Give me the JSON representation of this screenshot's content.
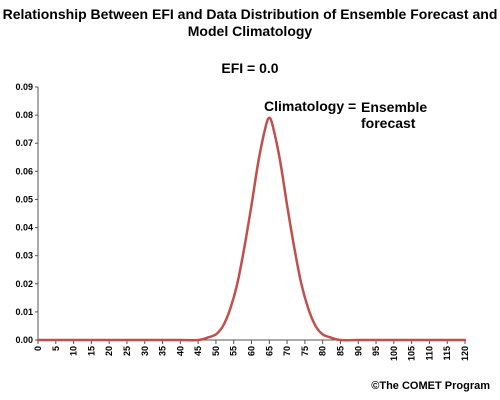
{
  "title": "Relationship Between EFI and Data Distribution of Ensemble Forecast and Model Climatology",
  "subtitle": "EFI = 0.0",
  "annotation_climatology": "Climatology =",
  "annotation_ensemble_line1": "Ensemble",
  "annotation_ensemble_line2": "forecast",
  "copyright": "©The COMET Program",
  "colors": {
    "curve": "#c0504d",
    "axis": "#555555",
    "grid": "#000000"
  },
  "chart_data": {
    "type": "line",
    "title": "Relationship Between EFI and Data Distribution of Ensemble Forecast and Model Climatology",
    "subtitle": "EFI = 0.0",
    "xlabel": "",
    "ylabel": "",
    "xlim": [
      0,
      120
    ],
    "ylim": [
      0,
      0.09
    ],
    "x_ticks": [
      0,
      5,
      10,
      15,
      20,
      25,
      30,
      35,
      40,
      45,
      50,
      55,
      60,
      65,
      70,
      75,
      80,
      85,
      90,
      95,
      100,
      105,
      110,
      115,
      120
    ],
    "y_ticks": [
      "0.00",
      "0.01",
      "0.02",
      "0.03",
      "0.04",
      "0.05",
      "0.06",
      "0.07",
      "0.08",
      "0.09"
    ],
    "grid": false,
    "series": [
      {
        "x": [
          0,
          5,
          10,
          15,
          20,
          25,
          30,
          35,
          40,
          45,
          48,
          50,
          52,
          54,
          56,
          58,
          60,
          62,
          64,
          65,
          66,
          68,
          70,
          72,
          74,
          76,
          78,
          80,
          82,
          85,
          90,
          95,
          100,
          105,
          110,
          115,
          120
        ],
        "values": [
          0,
          0,
          0,
          0,
          0,
          0,
          0,
          0,
          0,
          0,
          0.001,
          0.002,
          0.005,
          0.011,
          0.02,
          0.033,
          0.048,
          0.064,
          0.076,
          0.079,
          0.076,
          0.064,
          0.048,
          0.033,
          0.02,
          0.011,
          0.005,
          0.002,
          0.001,
          0,
          0,
          0,
          0,
          0,
          0,
          0,
          0
        ]
      }
    ]
  }
}
